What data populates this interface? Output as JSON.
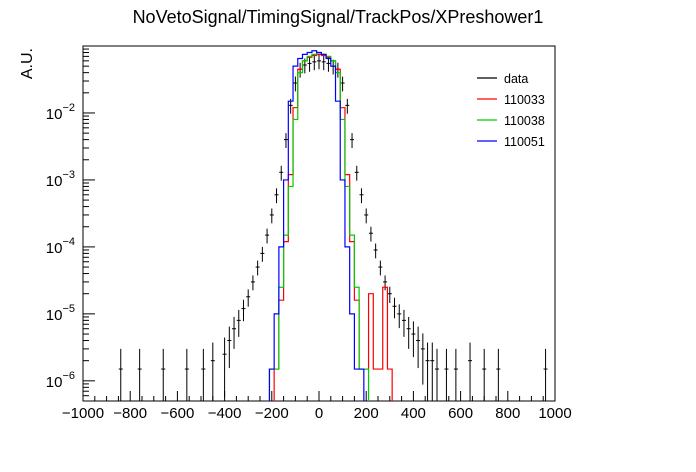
{
  "chart_data": {
    "type": "histogram",
    "title": "NoVetoSignal/TimingSignal/TrackPos/XPreshower1",
    "xlabel": "",
    "ylabel": "A.U.",
    "xlim": [
      -1000,
      1000
    ],
    "ylim": [
      5e-07,
      0.1
    ],
    "yscale": "log",
    "grid": false,
    "legend_position": "top-right",
    "x_ticks": [
      -1000,
      -800,
      -600,
      -400,
      -200,
      0,
      200,
      400,
      600,
      800,
      1000
    ],
    "x_tick_labels": [
      "−1000",
      "−800",
      "−600",
      "−400",
      "−200",
      "0",
      "200",
      "400",
      "600",
      "800",
      "1000"
    ],
    "y_ticks": [
      1e-06,
      1e-05,
      0.0001,
      0.001,
      0.01
    ],
    "y_tick_base": "10",
    "y_tick_exponents": [
      "−6",
      "−5",
      "−4",
      "−3",
      "−2"
    ],
    "series": [
      {
        "name": "data",
        "color": "#000000",
        "style": "points-with-errors",
        "x": [
          -840,
          -760,
          -660,
          -560,
          -490,
          -450,
          -400,
          -380,
          -360,
          -340,
          -320,
          -300,
          -280,
          -260,
          -240,
          -220,
          -200,
          -180,
          -160,
          -140,
          -120,
          -100,
          -80,
          -60,
          -40,
          -20,
          0,
          20,
          40,
          60,
          80,
          100,
          120,
          140,
          160,
          180,
          200,
          220,
          240,
          260,
          280,
          300,
          320,
          340,
          360,
          380,
          400,
          420,
          440,
          460,
          480,
          500,
          540,
          580,
          640,
          700,
          760,
          960
        ],
        "y": [
          1.5e-06,
          1.5e-06,
          1.5e-06,
          1.5e-06,
          1.5e-06,
          2e-06,
          2.5e-06,
          4e-06,
          6e-06,
          8e-06,
          1.2e-05,
          1.8e-05,
          3e-05,
          5e-05,
          8e-05,
          0.00015,
          0.0003,
          0.0006,
          0.0013,
          0.004,
          0.013,
          0.028,
          0.045,
          0.052,
          0.055,
          0.058,
          0.06,
          0.058,
          0.055,
          0.05,
          0.045,
          0.028,
          0.013,
          0.004,
          0.0013,
          0.0006,
          0.0003,
          0.00016,
          9e-05,
          5e-05,
          3e-05,
          2e-05,
          1.3e-05,
          1e-05,
          8e-06,
          6e-06,
          5e-06,
          4e-06,
          3e-06,
          2e-06,
          2e-06,
          1.5e-06,
          1.5e-06,
          1.5e-06,
          2e-06,
          1.5e-06,
          1.5e-06,
          1.5e-06
        ]
      },
      {
        "name": "110033",
        "color": "#ff0000",
        "style": "step",
        "x": [
          -180,
          -160,
          -140,
          -120,
          -100,
          -80,
          -60,
          -40,
          -20,
          0,
          20,
          40,
          60,
          80,
          100,
          120,
          140,
          160,
          180,
          200,
          220,
          240,
          260,
          280,
          300
        ],
        "y": [
          1.5e-06,
          1.6e-05,
          0.00012,
          0.0012,
          0.012,
          0.045,
          0.06,
          0.068,
          0.072,
          0.075,
          0.072,
          0.068,
          0.06,
          0.045,
          0.012,
          0.0012,
          0.00012,
          1.6e-05,
          1.5e-06,
          1.5e-06,
          2e-05,
          1.5e-06,
          1.5e-06,
          2.5e-05,
          1.5e-06
        ]
      },
      {
        "name": "110038",
        "color": "#00cc00",
        "style": "step",
        "x": [
          -200,
          -180,
          -160,
          -140,
          -120,
          -100,
          -80,
          -60,
          -40,
          -20,
          0,
          20,
          40,
          60,
          80,
          100,
          120,
          140,
          160,
          180,
          200
        ],
        "y": [
          1.5e-06,
          1.5e-06,
          2.5e-05,
          0.00015,
          0.0008,
          0.008,
          0.04,
          0.06,
          0.07,
          0.075,
          0.08,
          0.075,
          0.07,
          0.06,
          0.04,
          0.008,
          0.0008,
          0.00015,
          2.5e-05,
          1.5e-06,
          1.5e-06
        ]
      },
      {
        "name": "110051",
        "color": "#0000ff",
        "style": "step",
        "x": [
          -200,
          -180,
          -160,
          -140,
          -120,
          -100,
          -80,
          -60,
          -40,
          -20,
          0,
          20,
          40,
          60,
          80,
          100,
          120,
          140,
          160,
          180
        ],
        "y": [
          1.5e-06,
          1e-05,
          0.0001,
          0.001,
          0.015,
          0.05,
          0.065,
          0.075,
          0.08,
          0.085,
          0.08,
          0.075,
          0.065,
          0.05,
          0.015,
          0.001,
          0.0001,
          1e-05,
          1.5e-06,
          1.5e-06
        ]
      }
    ]
  }
}
